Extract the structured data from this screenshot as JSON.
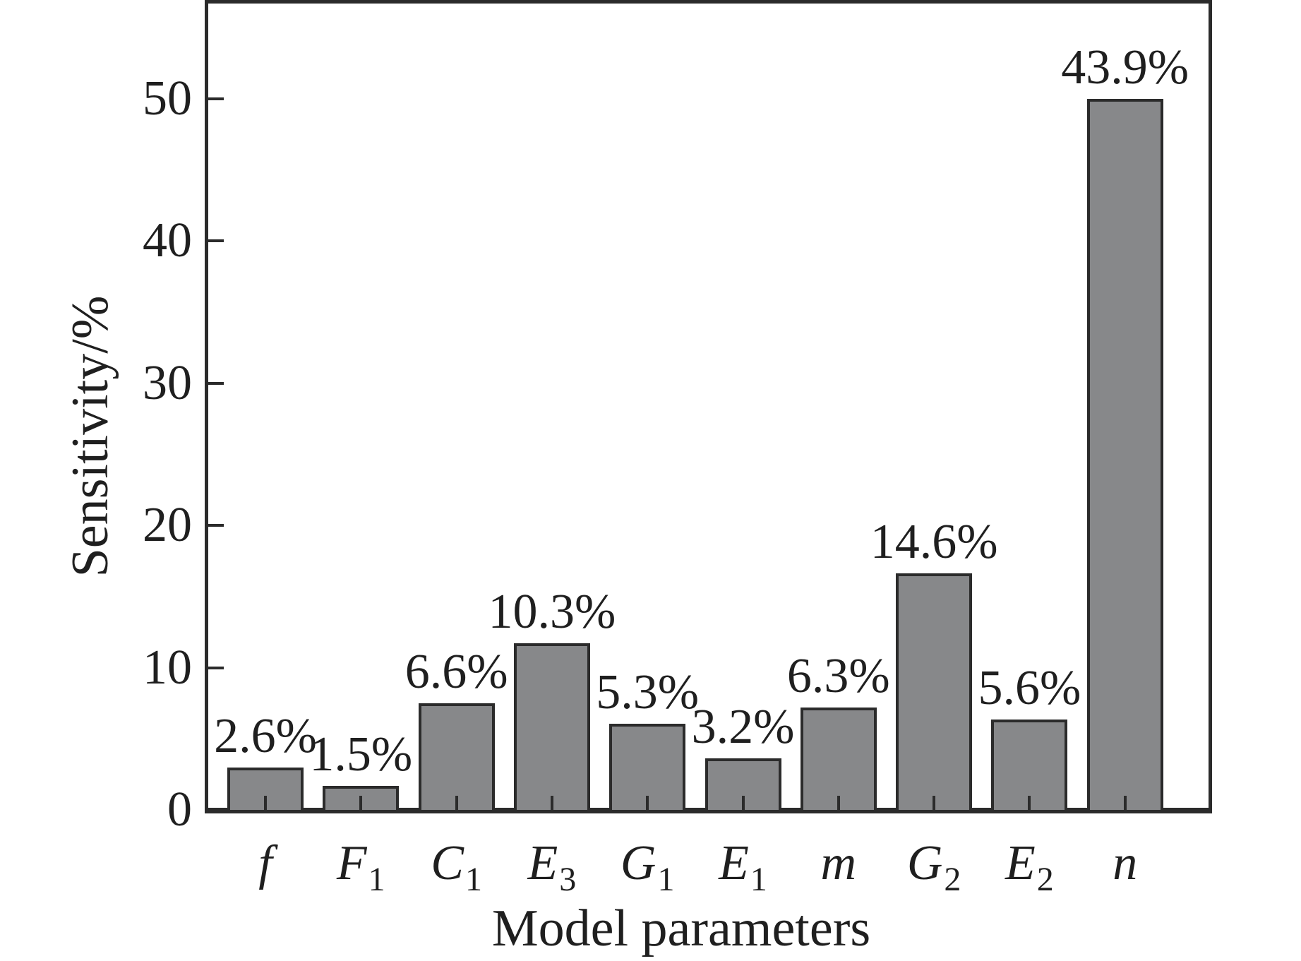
{
  "chart_data": {
    "type": "bar",
    "title": "",
    "xlabel": "Model parameters",
    "ylabel": "Sensitivity/%",
    "categories": [
      {
        "base": "f",
        "sub": ""
      },
      {
        "base": "F",
        "sub": "1"
      },
      {
        "base": "C",
        "sub": "1"
      },
      {
        "base": "E",
        "sub": "3"
      },
      {
        "base": "G",
        "sub": "1"
      },
      {
        "base": "E",
        "sub": "1"
      },
      {
        "base": "m",
        "sub": ""
      },
      {
        "base": "G",
        "sub": "2"
      },
      {
        "base": "E",
        "sub": "2"
      },
      {
        "base": "n",
        "sub": ""
      }
    ],
    "values": [
      2.6,
      1.5,
      6.6,
      10.3,
      5.3,
      3.2,
      6.3,
      14.6,
      5.6,
      43.9
    ],
    "value_labels": [
      "2.6%",
      "1.5%",
      "6.6%",
      "10.3%",
      "5.3%",
      "3.2%",
      "6.3%",
      "14.6%",
      "5.6%",
      "43.9%"
    ],
    "y_ticks": [
      0,
      10,
      20,
      30,
      40,
      50
    ],
    "ylim": [
      0,
      56.8
    ],
    "grid": false,
    "legend": "none",
    "bar_color": "#87888a",
    "bar_edge_color": "#2b2b2b",
    "axis_color": "#2b2b2b",
    "layout": {
      "bar_display_scale": 1.139,
      "note": "bars are drawn taller than labeled values by factor 50/43.9 as in source figure"
    }
  }
}
